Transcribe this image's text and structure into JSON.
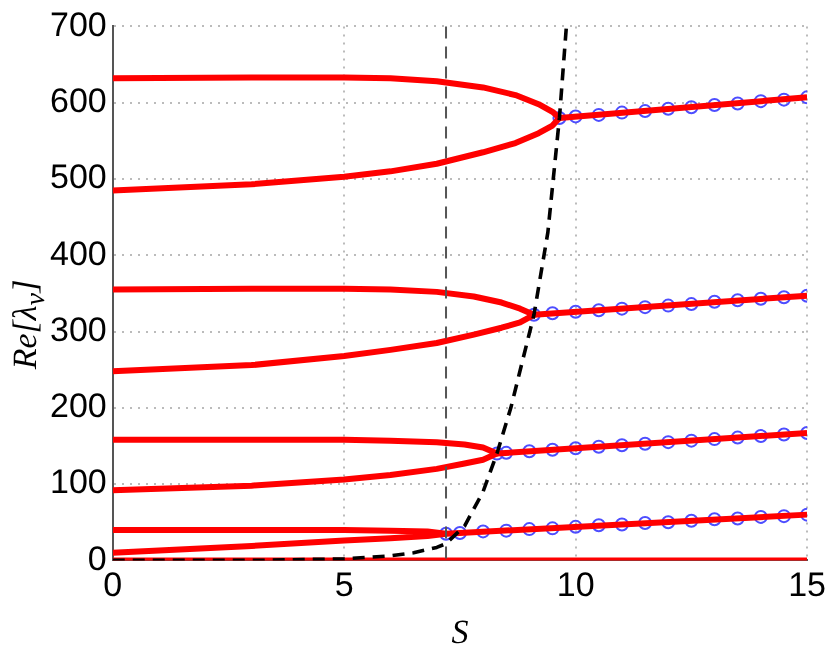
{
  "chart_data": {
    "type": "line",
    "xlabel": "S",
    "ylabel": "Re[λ$_{ν}$]",
    "xlim": [
      0,
      15
    ],
    "ylim": [
      0,
      700
    ],
    "xticks": [
      0,
      5,
      10,
      15
    ],
    "yticks": [
      0,
      100,
      200,
      300,
      400,
      500,
      600,
      700
    ],
    "grid": true,
    "legend": false,
    "ref_lines": [
      {
        "axis": "x",
        "value": 7.2,
        "color": "#555555",
        "line_style": "dashed"
      }
    ],
    "series": [
      {
        "color": "#ff0000",
        "x": [
          0,
          3,
          5,
          6,
          7,
          8,
          8.7,
          9.2,
          9.5,
          9.65,
          9.5,
          9.2,
          8.7,
          8,
          7,
          6,
          5,
          3,
          0
        ],
        "values": [
          632,
          633,
          633,
          632,
          628,
          620,
          610,
          598,
          588,
          580,
          570,
          560,
          547,
          535,
          520,
          510,
          503,
          493,
          485
        ]
      },
      {
        "color": "#ff0000",
        "x": [
          0,
          3,
          5,
          6,
          7,
          7.8,
          8.4,
          8.8,
          9.1,
          8.8,
          8.4,
          7.8,
          7,
          6,
          5,
          3,
          0
        ],
        "values": [
          355,
          356,
          356,
          355,
          352,
          346,
          338,
          330,
          322,
          312,
          305,
          296,
          285,
          276,
          268,
          256,
          248
        ]
      },
      {
        "color": "#ff0000",
        "x": [
          0,
          3,
          5,
          6,
          7,
          7.6,
          8,
          8.3,
          8,
          7.6,
          7,
          6,
          5,
          3,
          0
        ],
        "values": [
          158,
          158,
          158,
          157,
          155,
          152,
          148,
          140,
          132,
          127,
          120,
          112,
          106,
          98,
          92
        ]
      },
      {
        "color": "#ff0000",
        "x": [
          0,
          3,
          5,
          6,
          6.8,
          7.2,
          6.8,
          6,
          5,
          3,
          0
        ],
        "values": [
          40,
          40,
          40,
          39,
          38,
          35,
          32,
          29,
          26,
          19,
          10
        ]
      },
      {
        "color": "#ff0000",
        "x": [
          0,
          15
        ],
        "values": [
          0,
          0
        ]
      },
      {
        "type": "scatter",
        "color": "#4d4dff",
        "marker": "circle",
        "x": [
          7.2,
          7.5,
          8,
          8.5,
          9,
          9.5,
          10,
          10.5,
          11,
          11.5,
          12,
          12.5,
          13,
          13.5,
          14,
          14.5,
          15
        ],
        "values": [
          35,
          36,
          38,
          39,
          41,
          42,
          44,
          46,
          47,
          49,
          50,
          52,
          54,
          55,
          57,
          58,
          60
        ]
      },
      {
        "type": "scatter",
        "color": "#4d4dff",
        "marker": "circle",
        "x": [
          8.3,
          8.5,
          9,
          9.5,
          10,
          10.5,
          11,
          11.5,
          12,
          12.5,
          13,
          13.5,
          14,
          14.5,
          15
        ],
        "values": [
          140,
          141,
          143,
          145,
          147,
          149,
          151,
          153,
          155,
          157,
          159,
          161,
          163,
          165,
          167
        ]
      },
      {
        "type": "scatter",
        "color": "#4d4dff",
        "marker": "circle",
        "x": [
          9.1,
          9.5,
          10,
          10.5,
          11,
          11.5,
          12,
          12.5,
          13,
          13.5,
          14,
          14.5,
          15
        ],
        "values": [
          322,
          324,
          326,
          328,
          330,
          332,
          334,
          336,
          339,
          341,
          343,
          345,
          347
        ]
      },
      {
        "type": "scatter",
        "color": "#4d4dff",
        "marker": "circle",
        "x": [
          9.65,
          10,
          10.5,
          11,
          11.5,
          12,
          12.5,
          13,
          13.5,
          14,
          14.5,
          15
        ],
        "values": [
          580,
          582,
          584,
          587,
          589,
          592,
          594,
          597,
          599,
          602,
          604,
          607
        ]
      },
      {
        "color": "#ff0000",
        "x": [
          7.2,
          15
        ],
        "values": [
          35,
          60
        ]
      },
      {
        "color": "#ff0000",
        "x": [
          8.3,
          15
        ],
        "values": [
          140,
          167
        ]
      },
      {
        "color": "#ff0000",
        "x": [
          9.1,
          15
        ],
        "values": [
          322,
          347
        ]
      },
      {
        "color": "#ff0000",
        "x": [
          9.65,
          15
        ],
        "values": [
          580,
          607
        ]
      },
      {
        "color": "#000000",
        "line_style": "dashed",
        "x": [
          0,
          3,
          5,
          6,
          6.5,
          7,
          7.2,
          7.6,
          8,
          8.3,
          8.6,
          9.1,
          9.4,
          9.65,
          9.8
        ],
        "values": [
          0,
          0,
          2,
          6,
          10,
          17,
          22,
          45,
          90,
          140,
          200,
          322,
          430,
          580,
          700
        ]
      }
    ]
  }
}
